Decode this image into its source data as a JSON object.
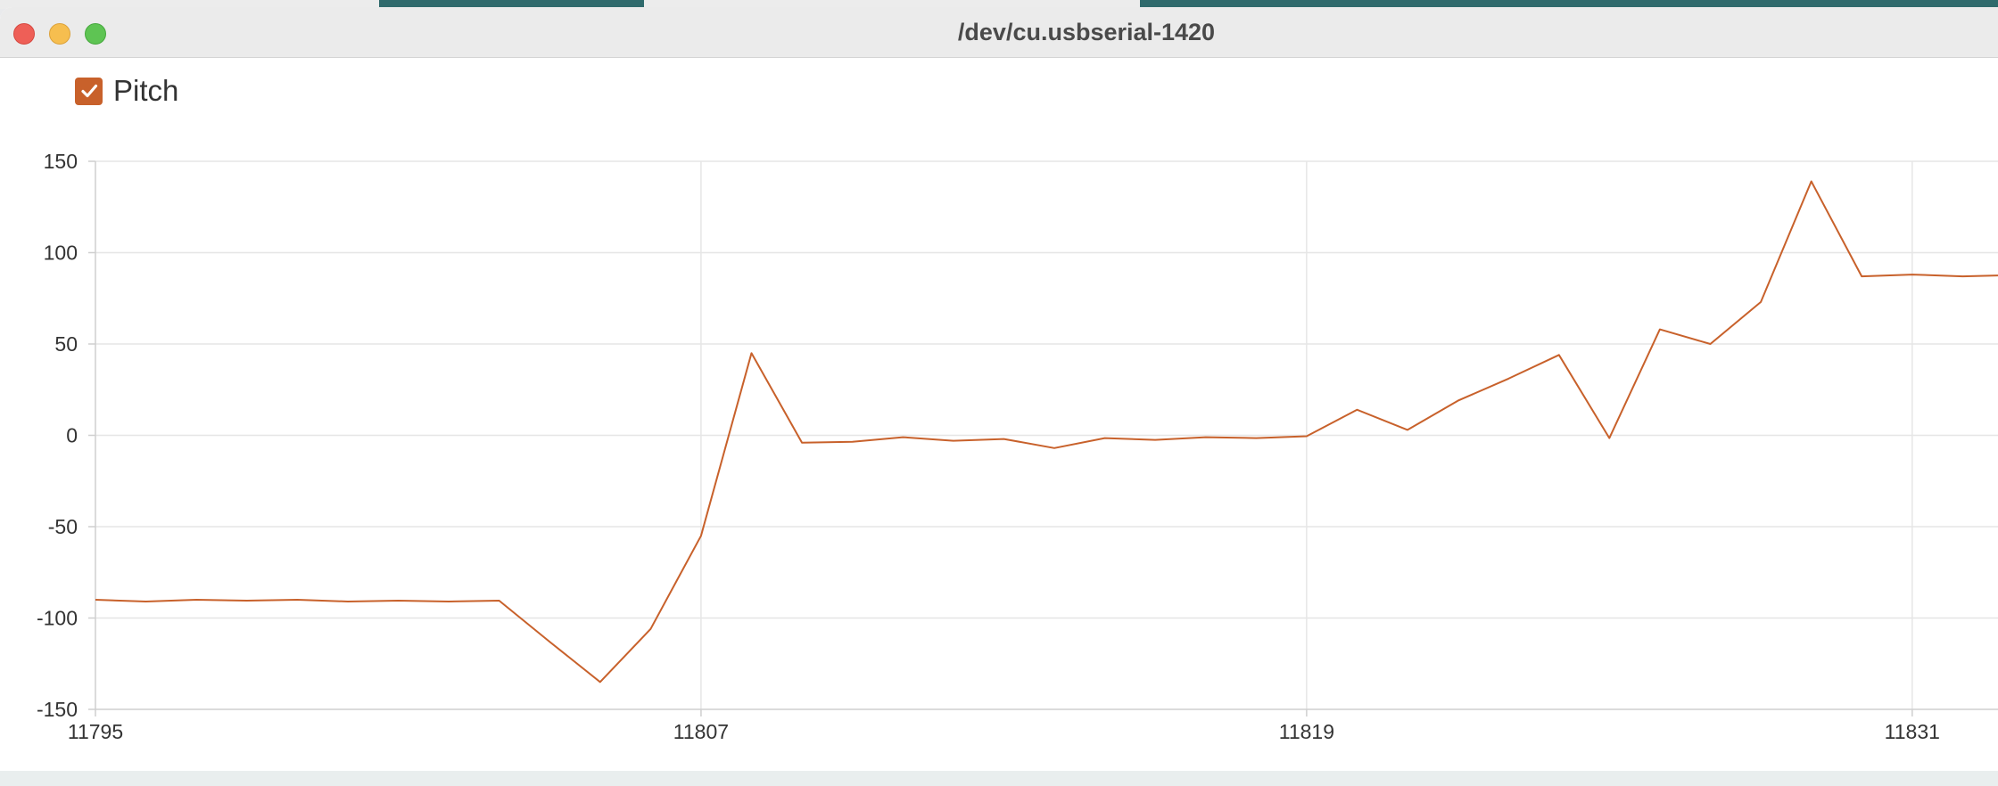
{
  "window": {
    "title": "/dev/cu.usbserial-1420"
  },
  "legend": {
    "label": "Pitch",
    "checked": true,
    "color": "#c8612b"
  },
  "chart_data": {
    "type": "line",
    "title": "",
    "xlabel": "",
    "ylabel": "",
    "ylim": [
      -150,
      150
    ],
    "xlim": [
      11795,
      11832.7
    ],
    "y_ticks": [
      150,
      100,
      50,
      0,
      -50,
      -100,
      -150
    ],
    "x_ticks": [
      11795,
      11807,
      11819,
      11831
    ],
    "grid": true,
    "legend_position": "top-left",
    "series": [
      {
        "name": "Pitch",
        "color": "#c8612b",
        "x": [
          11795,
          11796,
          11797,
          11798,
          11799,
          11800,
          11801,
          11802,
          11803,
          11804,
          11805,
          11806,
          11807,
          11808,
          11809,
          11810,
          11811,
          11812,
          11813,
          11814,
          11815,
          11816,
          11817,
          11818,
          11819,
          11820,
          11821,
          11822,
          11823,
          11824,
          11825,
          11826,
          11827,
          11828,
          11829,
          11830,
          11831,
          11832,
          11832.7
        ],
        "y": [
          -90,
          -91,
          -90,
          -90.5,
          -90,
          -91,
          -90.5,
          -91,
          -90.5,
          -113,
          -135,
          -106,
          -55,
          45,
          -4,
          -3.5,
          -1,
          -3,
          -2,
          -7,
          -1.5,
          -2.5,
          -1,
          -1.5,
          -0.5,
          14,
          3,
          19,
          31,
          44,
          -1.5,
          58,
          50,
          73,
          139,
          87,
          88,
          87,
          87.5
        ]
      }
    ]
  }
}
